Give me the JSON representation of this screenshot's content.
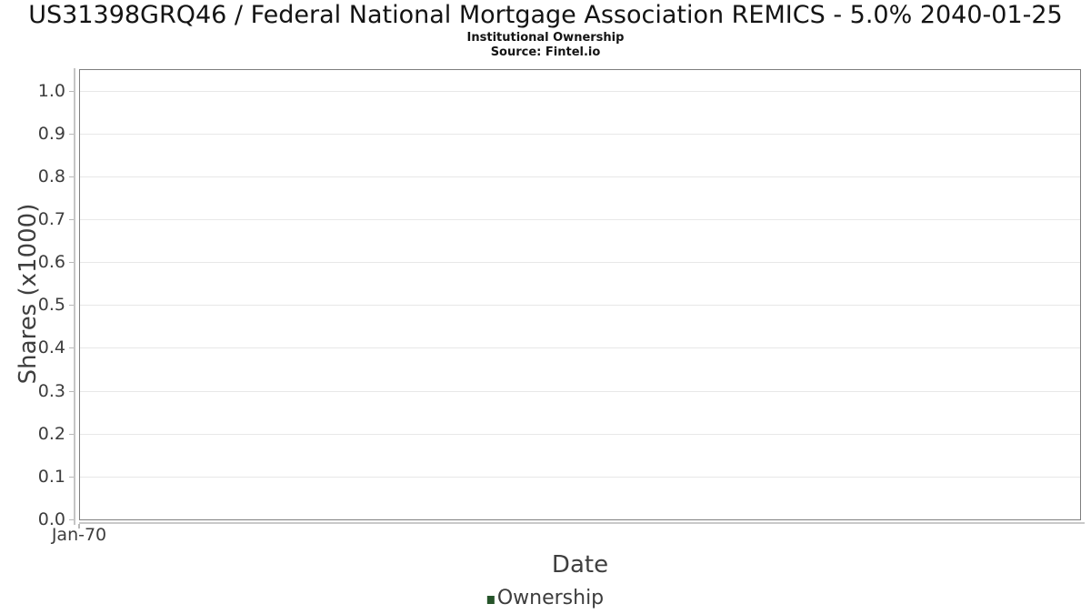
{
  "chart_data": {
    "type": "line",
    "title": "US31398GRQ46 / Federal National Mortgage Association REMICS - 5.0% 2040-01-25",
    "subtitle": "Institutional Ownership",
    "source": "Source: Fintel.io",
    "xlabel": "Date",
    "ylabel": "Shares (x1000)",
    "x_tick_labels": [
      "Jan-70"
    ],
    "y_tick_labels": [
      "1.0",
      "0.9",
      "0.8",
      "0.7",
      "0.6",
      "0.5",
      "0.4",
      "0.3",
      "0.2",
      "0.1",
      "0.0"
    ],
    "ylim": [
      0,
      1.05
    ],
    "grid": true,
    "legend": {
      "position": "bottom-center",
      "entries": [
        {
          "label": "Ownership",
          "color": "#26542a"
        }
      ]
    },
    "series": [
      {
        "name": "Ownership",
        "color": "#26542a",
        "x": [],
        "values": []
      }
    ],
    "empty": true
  },
  "colors": {
    "background": "#ffffff",
    "plot_border": "#7e7e7e",
    "gridline": "#e8e8e8",
    "axis_line": "#c5c5c5",
    "tick_mark": "#b8b8b8",
    "tick_label_text": "#3d3d3d",
    "axis_title_text": "#3f3f3f",
    "title_text": "#141414",
    "legend_green": "#26542a"
  }
}
